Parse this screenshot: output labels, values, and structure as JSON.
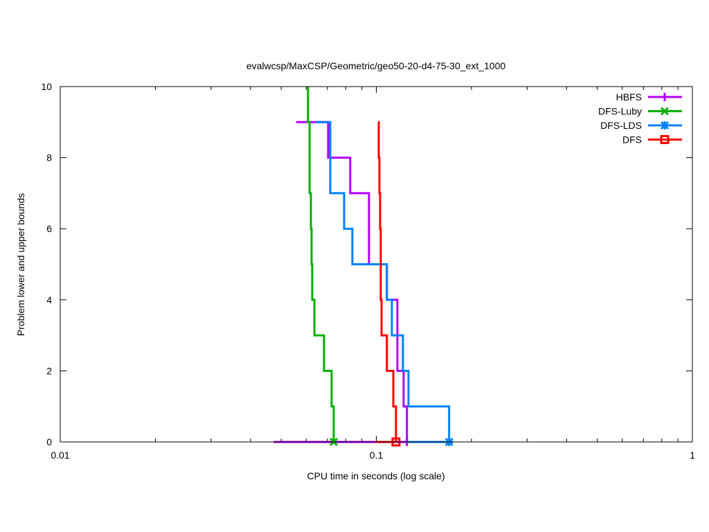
{
  "chart_data": {
    "type": "line",
    "title": "evalwcsp/MaxCSP/Geometric/geo50-20-d4-75-30_ext_1000",
    "xlabel": "CPU time in seconds (log scale)",
    "ylabel": "Problem lower and upper bounds",
    "xscale": "log",
    "xlim": [
      0.01,
      1
    ],
    "ylim": [
      0,
      10
    ],
    "xticks": [
      {
        "v": 0.01,
        "label": "0.01"
      },
      {
        "v": 0.1,
        "label": "0.1"
      },
      {
        "v": 1,
        "label": "1"
      }
    ],
    "yticks": [
      {
        "v": 0,
        "label": "0"
      },
      {
        "v": 2,
        "label": "2"
      },
      {
        "v": 4,
        "label": "4"
      },
      {
        "v": 6,
        "label": "6"
      },
      {
        "v": 8,
        "label": "8"
      },
      {
        "v": 10,
        "label": "10"
      }
    ],
    "legend_position": "top-right",
    "series": [
      {
        "name": "HBFS",
        "color": "#b000ff",
        "marker": "plus",
        "lower_start": 0.0473,
        "steps": [
          [
            0.0558,
            9
          ],
          [
            0.0704,
            8
          ],
          [
            0.0827,
            7
          ],
          [
            0.0948,
            5
          ],
          [
            0.108,
            4
          ],
          [
            0.1166,
            2
          ],
          [
            0.122,
            1
          ],
          [
            0.125,
            0
          ]
        ]
      },
      {
        "name": "DFS-Luby",
        "color": "#00b000",
        "marker": "cross",
        "lower_start": 0.0733,
        "steps": [
          [
            0.0608,
            10
          ],
          [
            0.0608,
            9
          ],
          [
            0.0615,
            7
          ],
          [
            0.0621,
            6
          ],
          [
            0.0624,
            5
          ],
          [
            0.0627,
            4
          ],
          [
            0.0637,
            3
          ],
          [
            0.0683,
            2
          ],
          [
            0.0722,
            1
          ],
          [
            0.0733,
            0
          ]
        ]
      },
      {
        "name": "DFS-LDS",
        "color": "#0080ff",
        "marker": "star",
        "lower_start": 0.125,
        "steps": [
          [
            0.0643,
            9
          ],
          [
            0.0715,
            7
          ],
          [
            0.0791,
            6
          ],
          [
            0.084,
            5
          ],
          [
            0.108,
            4
          ],
          [
            0.112,
            3
          ],
          [
            0.1214,
            2
          ],
          [
            0.1264,
            1
          ],
          [
            0.17,
            0
          ]
        ]
      },
      {
        "name": "DFS",
        "color": "#ff0000",
        "marker": "square",
        "lower_start": 0.1,
        "steps": [
          [
            0.1013,
            9
          ],
          [
            0.1018,
            8
          ],
          [
            0.1023,
            7
          ],
          [
            0.1028,
            6
          ],
          [
            0.1033,
            4
          ],
          [
            0.1039,
            3
          ],
          [
            0.108,
            2
          ],
          [
            0.1132,
            1
          ],
          [
            0.1154,
            0
          ]
        ]
      }
    ]
  }
}
